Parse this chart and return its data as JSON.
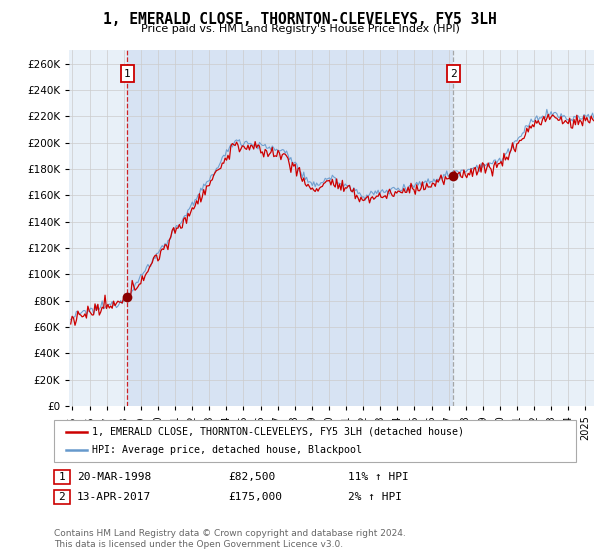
{
  "title": "1, EMERALD CLOSE, THORNTON-CLEVELEYS, FY5 3LH",
  "subtitle": "Price paid vs. HM Land Registry's House Price Index (HPI)",
  "ylim": [
    0,
    270000
  ],
  "yticks": [
    0,
    20000,
    40000,
    60000,
    80000,
    100000,
    120000,
    140000,
    160000,
    180000,
    200000,
    220000,
    240000,
    260000
  ],
  "xlim_start": 1994.8,
  "xlim_end": 2025.5,
  "xtick_years": [
    1995,
    1996,
    1997,
    1998,
    1999,
    2000,
    2001,
    2002,
    2003,
    2004,
    2005,
    2006,
    2007,
    2008,
    2009,
    2010,
    2011,
    2012,
    2013,
    2014,
    2015,
    2016,
    2017,
    2018,
    2019,
    2020,
    2021,
    2022,
    2023,
    2024,
    2025
  ],
  "sale1_x": 1998.22,
  "sale1_y": 82500,
  "sale1_label": "1",
  "sale2_x": 2017.28,
  "sale2_y": 175000,
  "sale2_label": "2",
  "line_color_price": "#cc0000",
  "line_color_hpi": "#6699cc",
  "marker_color": "#8b0000",
  "vline1_color": "#cc0000",
  "vline2_color": "#999999",
  "shade_color": "#ddeeff",
  "legend_label1": "1, EMERALD CLOSE, THORNTON-CLEVELEYS, FY5 3LH (detached house)",
  "legend_label2": "HPI: Average price, detached house, Blackpool",
  "table_row1": [
    "1",
    "20-MAR-1998",
    "£82,500",
    "11% ↑ HPI"
  ],
  "table_row2": [
    "2",
    "13-APR-2017",
    "£175,000",
    "2% ↑ HPI"
  ],
  "footer": "Contains HM Land Registry data © Crown copyright and database right 2024.\nThis data is licensed under the Open Government Licence v3.0.",
  "background_color": "#ffffff",
  "grid_color": "#cccccc",
  "chart_bg": "#e8f0f8"
}
